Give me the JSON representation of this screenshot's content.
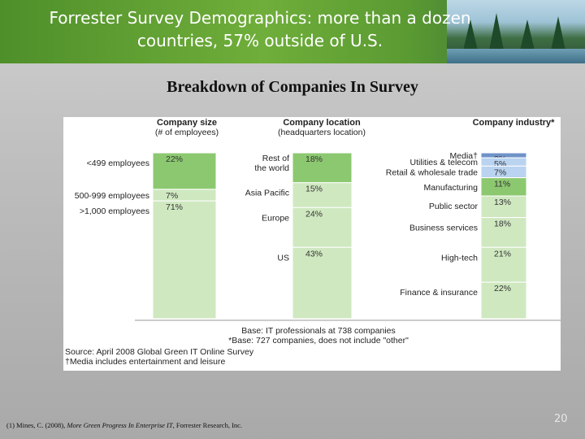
{
  "slide": {
    "title": "Forrester Survey Demographics: more than a dozen countries, 57% outside of U.S.",
    "subtitle": "Breakdown of Companies In Survey",
    "footnote_prefix": "(1) Mines, C. (2008), ",
    "footnote_title": "More Green Progress In Enterprise IT",
    "footnote_suffix": ", Forrester Research, Inc.",
    "page_number": "20"
  },
  "colors": {
    "title_text": "#ffffff",
    "band_green": "#6fae3a",
    "bar_light_green": "#cfe8c0",
    "bar_green": "#8cc870",
    "bar_blue": "#6f93c8",
    "bar_light_blue": "#b9d3f0"
  },
  "chart_data": [
    {
      "type": "bar",
      "title": "Company size",
      "subtitle": "(# of employees)",
      "categories": [
        "<499 employees",
        "500-999 employees",
        ">1,000 employees"
      ],
      "values": [
        22,
        7,
        71
      ],
      "labels": [
        "22%",
        "7%",
        "71%"
      ],
      "unit": "%",
      "stacked": true
    },
    {
      "type": "bar",
      "title": "Company location",
      "subtitle": "(headquarters location)",
      "categories": [
        "Rest of the world",
        "Asia Pacific",
        "Europe",
        "US"
      ],
      "values": [
        18,
        15,
        24,
        43
      ],
      "labels": [
        "18%",
        "15%",
        "24%",
        "43%"
      ],
      "unit": "%",
      "stacked": true
    },
    {
      "type": "bar",
      "title": "Company industry*",
      "categories": [
        "Media†",
        "Utilities & telecom",
        "Retail & wholesale trade",
        "Manufacturing",
        "Public sector",
        "Business services",
        "High-tech",
        "Finance & insurance"
      ],
      "values": [
        3,
        5,
        7,
        11,
        13,
        18,
        21,
        22
      ],
      "labels": [
        "3%",
        "5%",
        "7%",
        "11%",
        "13%",
        "18%",
        "21%",
        "22%"
      ],
      "unit": "%",
      "stacked": true
    }
  ],
  "chart_notes": {
    "base": "Base: IT professionals at 738 companies",
    "base_industry": "*Base: 727 companies, does not include \"other\"",
    "source": "Source: April 2008 Global Green IT Online Survey",
    "media_note": "†Media includes entertainment and leisure"
  }
}
